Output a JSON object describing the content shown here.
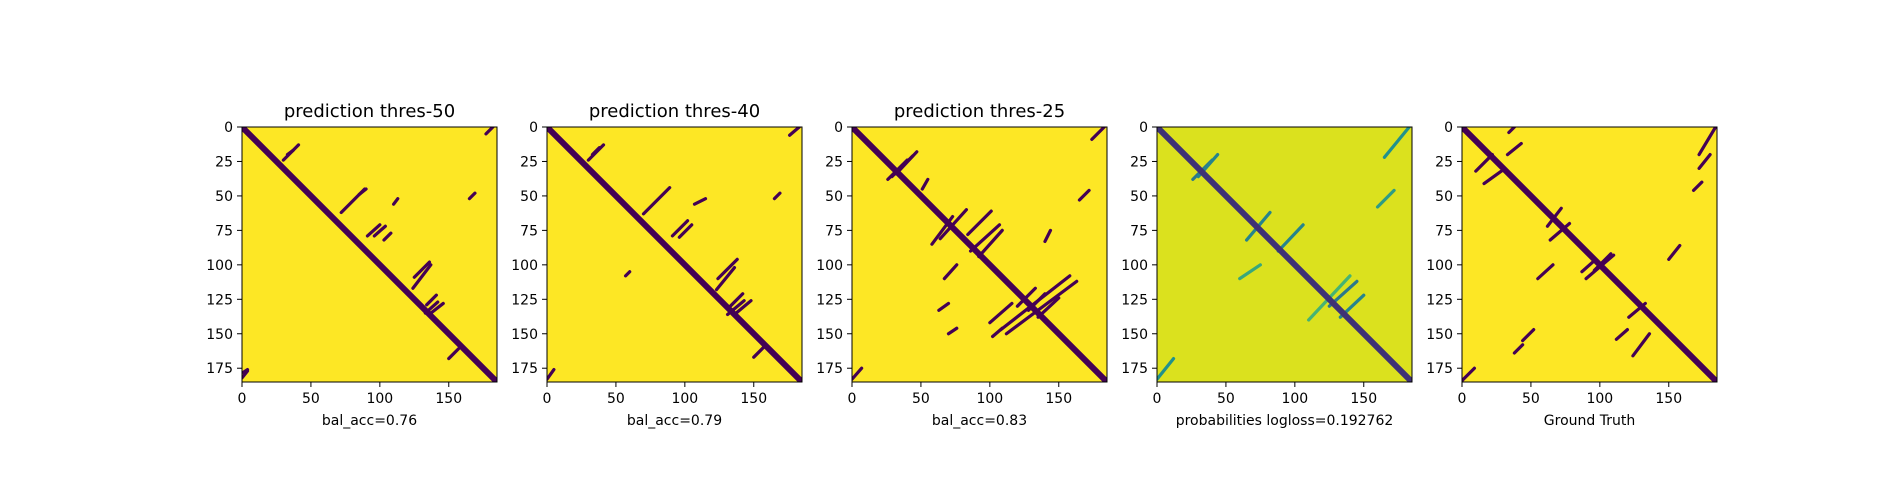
{
  "figure": {
    "background": "#ffffff",
    "colormap": "viridis",
    "colors": {
      "low": "#440154",
      "high": "#fde725",
      "mid_low": "#3b528b",
      "mid": "#21918c",
      "mid_high": "#5ec962",
      "prob_bg": "#dbe11e"
    }
  },
  "chart_data": [
    {
      "type": "heatmap",
      "title": "prediction thres-50",
      "subtitle": "",
      "xlabel": "bal_acc=0.76",
      "ylabel": "",
      "size": 185,
      "xlim": [
        0,
        185
      ],
      "ylim": [
        185,
        0
      ],
      "xticks": [
        0,
        50,
        100,
        150
      ],
      "yticks": [
        0,
        25,
        50,
        75,
        100,
        125,
        150,
        175
      ],
      "value_range": [
        0,
        1
      ],
      "diagonal": {
        "from": 0,
        "to": 185,
        "value": 0
      },
      "segments": [
        {
          "from": [
            30,
            24
          ],
          "to": [
            41,
            13
          ]
        },
        {
          "from": [
            33,
            20
          ],
          "to": [
            37,
            17
          ]
        },
        {
          "from": [
            72,
            62
          ],
          "to": [
            89,
            45
          ]
        },
        {
          "from": [
            85,
            49
          ],
          "to": [
            90,
            45
          ]
        },
        {
          "from": [
            91,
            79
          ],
          "to": [
            100,
            71
          ]
        },
        {
          "from": [
            96,
            79
          ],
          "to": [
            104,
            72
          ]
        },
        {
          "from": [
            103,
            82
          ],
          "to": [
            108,
            77
          ]
        },
        {
          "from": [
            110,
            56
          ],
          "to": [
            113,
            52
          ]
        },
        {
          "from": [
            125,
            109
          ],
          "to": [
            136,
            98
          ]
        },
        {
          "from": [
            124,
            117
          ],
          "to": [
            137,
            100
          ]
        },
        {
          "from": [
            134,
            129
          ],
          "to": [
            141,
            122
          ]
        },
        {
          "from": [
            133,
            135
          ],
          "to": [
            142,
            127
          ]
        },
        {
          "from": [
            137,
            135
          ],
          "to": [
            146,
            128
          ]
        },
        {
          "from": [
            150,
            168
          ],
          "to": [
            157,
            161
          ]
        },
        {
          "from": [
            165,
            52
          ],
          "to": [
            169,
            48
          ]
        },
        {
          "from": [
            177,
            5
          ],
          "to": [
            182,
            0
          ]
        },
        {
          "from": [
            0,
            182
          ],
          "to": [
            4,
            177
          ]
        },
        {
          "from": [
            1,
            178
          ],
          "to": [
            4,
            176
          ]
        }
      ]
    },
    {
      "type": "heatmap",
      "title": "prediction thres-40",
      "subtitle": "",
      "xlabel": "bal_acc=0.79",
      "ylabel": "",
      "size": 185,
      "xlim": [
        0,
        185
      ],
      "ylim": [
        185,
        0
      ],
      "xticks": [
        0,
        50,
        100,
        150
      ],
      "yticks": [
        0,
        25,
        50,
        75,
        100,
        125,
        150,
        175
      ],
      "value_range": [
        0,
        1
      ],
      "diagonal": {
        "from": 0,
        "to": 185,
        "value": 0
      },
      "segments": [
        {
          "from": [
            30,
            24
          ],
          "to": [
            41,
            13
          ]
        },
        {
          "from": [
            33,
            20
          ],
          "to": [
            38,
            15
          ]
        },
        {
          "from": [
            57,
            108
          ],
          "to": [
            60,
            105
          ]
        },
        {
          "from": [
            70,
            63
          ],
          "to": [
            89,
            44
          ]
        },
        {
          "from": [
            91,
            79
          ],
          "to": [
            102,
            68
          ]
        },
        {
          "from": [
            96,
            80
          ],
          "to": [
            105,
            71
          ]
        },
        {
          "from": [
            107,
            56
          ],
          "to": [
            115,
            52
          ]
        },
        {
          "from": [
            124,
            110
          ],
          "to": [
            138,
            96
          ]
        },
        {
          "from": [
            123,
            118
          ],
          "to": [
            136,
            102
          ]
        },
        {
          "from": [
            133,
            130
          ],
          "to": [
            142,
            121
          ]
        },
        {
          "from": [
            131,
            136
          ],
          "to": [
            143,
            126
          ]
        },
        {
          "from": [
            136,
            136
          ],
          "to": [
            148,
            126
          ]
        },
        {
          "from": [
            150,
            167
          ],
          "to": [
            158,
            159
          ]
        },
        {
          "from": [
            165,
            52
          ],
          "to": [
            169,
            48
          ]
        },
        {
          "from": [
            176,
            6
          ],
          "to": [
            183,
            0
          ]
        },
        {
          "from": [
            0,
            183
          ],
          "to": [
            5,
            176
          ]
        }
      ]
    },
    {
      "type": "heatmap",
      "title": "prediction thres-25",
      "subtitle": "",
      "xlabel": "bal_acc=0.83",
      "ylabel": "",
      "size": 185,
      "xlim": [
        0,
        185
      ],
      "ylim": [
        185,
        0
      ],
      "xticks": [
        0,
        50,
        100,
        150
      ],
      "yticks": [
        0,
        25,
        50,
        75,
        100,
        125,
        150,
        175
      ],
      "value_range": [
        0,
        1
      ],
      "diagonal": {
        "from": 0,
        "to": 185,
        "value": 0
      },
      "segments": [
        {
          "from": [
            26,
            38
          ],
          "to": [
            40,
            24
          ]
        },
        {
          "from": [
            29,
            36
          ],
          "to": [
            44,
            21
          ]
        },
        {
          "from": [
            32,
            34
          ],
          "to": [
            47,
            18
          ]
        },
        {
          "from": [
            51,
            45
          ],
          "to": [
            55,
            38
          ]
        },
        {
          "from": [
            58,
            85
          ],
          "to": [
            73,
            65
          ]
        },
        {
          "from": [
            64,
            81
          ],
          "to": [
            83,
            60
          ]
        },
        {
          "from": [
            67,
            110
          ],
          "to": [
            76,
            100
          ]
        },
        {
          "from": [
            70,
            150
          ],
          "to": [
            76,
            146
          ]
        },
        {
          "from": [
            63,
            133
          ],
          "to": [
            70,
            128
          ]
        },
        {
          "from": [
            84,
            78
          ],
          "to": [
            101,
            61
          ]
        },
        {
          "from": [
            86,
            90
          ],
          "to": [
            107,
            71
          ]
        },
        {
          "from": [
            92,
            94
          ],
          "to": [
            109,
            75
          ]
        },
        {
          "from": [
            100,
            142
          ],
          "to": [
            116,
            128
          ]
        },
        {
          "from": [
            102,
            152
          ],
          "to": [
            109,
            146
          ]
        },
        {
          "from": [
            120,
            130
          ],
          "to": [
            133,
            117
          ]
        },
        {
          "from": [
            112,
            150
          ],
          "to": [
            163,
            112
          ]
        },
        {
          "from": [
            108,
            147
          ],
          "to": [
            158,
            108
          ]
        },
        {
          "from": [
            128,
            133
          ],
          "to": [
            140,
            121
          ]
        },
        {
          "from": [
            135,
            138
          ],
          "to": [
            150,
            124
          ]
        },
        {
          "from": [
            140,
            83
          ],
          "to": [
            144,
            75
          ]
        },
        {
          "from": [
            165,
            53
          ],
          "to": [
            172,
            46
          ]
        },
        {
          "from": [
            174,
            9
          ],
          "to": [
            183,
            0
          ]
        },
        {
          "from": [
            0,
            183
          ],
          "to": [
            7,
            175
          ]
        }
      ]
    },
    {
      "type": "heatmap",
      "title": "",
      "subtitle": "",
      "xlabel": "probabilities logloss=0.192762",
      "ylabel": "",
      "size": 185,
      "xlim": [
        0,
        185
      ],
      "ylim": [
        185,
        0
      ],
      "xticks": [
        0,
        50,
        100,
        150
      ],
      "yticks": [
        0,
        25,
        50,
        75,
        100,
        125,
        150,
        175
      ],
      "value_range": [
        0,
        1
      ],
      "background_value": 0.93,
      "diagonal": {
        "from": 0,
        "to": 185,
        "value": 0.15
      },
      "segments": [
        {
          "from": [
            26,
            38
          ],
          "to": [
            40,
            24
          ],
          "value": 0.4
        },
        {
          "from": [
            30,
            36
          ],
          "to": [
            44,
            20
          ],
          "value": 0.45
        },
        {
          "from": [
            65,
            82
          ],
          "to": [
            82,
            62
          ],
          "value": 0.45
        },
        {
          "from": [
            88,
            90
          ],
          "to": [
            106,
            71
          ],
          "value": 0.45
        },
        {
          "from": [
            60,
            110
          ],
          "to": [
            75,
            100
          ],
          "value": 0.6
        },
        {
          "from": [
            125,
            130
          ],
          "to": [
            145,
            112
          ],
          "value": 0.4
        },
        {
          "from": [
            133,
            138
          ],
          "to": [
            150,
            122
          ],
          "value": 0.45
        },
        {
          "from": [
            160,
            58
          ],
          "to": [
            172,
            46
          ],
          "value": 0.55
        },
        {
          "from": [
            165,
            22
          ],
          "to": [
            183,
            0
          ],
          "value": 0.5
        },
        {
          "from": [
            0,
            183
          ],
          "to": [
            12,
            168
          ],
          "value": 0.5
        },
        {
          "from": [
            110,
            140
          ],
          "to": [
            140,
            108
          ],
          "value": 0.65
        }
      ]
    },
    {
      "type": "heatmap",
      "title": "",
      "subtitle": "",
      "xlabel": "Ground Truth",
      "ylabel": "",
      "size": 185,
      "xlim": [
        0,
        185
      ],
      "ylim": [
        185,
        0
      ],
      "xticks": [
        0,
        50,
        100,
        150
      ],
      "yticks": [
        0,
        25,
        50,
        75,
        100,
        125,
        150,
        175
      ],
      "value_range": [
        0,
        1
      ],
      "diagonal": {
        "from": 0,
        "to": 185,
        "value": 0
      },
      "segments": [
        {
          "from": [
            10,
            32
          ],
          "to": [
            22,
            20
          ]
        },
        {
          "from": [
            16,
            41
          ],
          "to": [
            30,
            31
          ]
        },
        {
          "from": [
            33,
            20
          ],
          "to": [
            43,
            12
          ]
        },
        {
          "from": [
            34,
            4
          ],
          "to": [
            38,
            0
          ]
        },
        {
          "from": [
            62,
            72
          ],
          "to": [
            72,
            59
          ]
        },
        {
          "from": [
            64,
            82
          ],
          "to": [
            78,
            70
          ]
        },
        {
          "from": [
            55,
            110
          ],
          "to": [
            66,
            100
          ]
        },
        {
          "from": [
            87,
            105
          ],
          "to": [
            96,
            97
          ]
        },
        {
          "from": [
            90,
            110
          ],
          "to": [
            110,
            93
          ]
        },
        {
          "from": [
            96,
            104
          ],
          "to": [
            108,
            92
          ]
        },
        {
          "from": [
            121,
            138
          ],
          "to": [
            133,
            128
          ]
        },
        {
          "from": [
            112,
            154
          ],
          "to": [
            120,
            147
          ]
        },
        {
          "from": [
            150,
            96
          ],
          "to": [
            158,
            86
          ]
        },
        {
          "from": [
            172,
            20
          ],
          "to": [
            184,
            0
          ]
        },
        {
          "from": [
            168,
            46
          ],
          "to": [
            174,
            40
          ]
        },
        {
          "from": [
            172,
            30
          ],
          "to": [
            180,
            20
          ]
        },
        {
          "from": [
            0,
            184
          ],
          "to": [
            9,
            175
          ]
        },
        {
          "from": [
            38,
            164
          ],
          "to": [
            44,
            158
          ]
        },
        {
          "from": [
            124,
            166
          ],
          "to": [
            136,
            150
          ]
        },
        {
          "from": [
            44,
            155
          ],
          "to": [
            52,
            147
          ]
        }
      ]
    }
  ]
}
